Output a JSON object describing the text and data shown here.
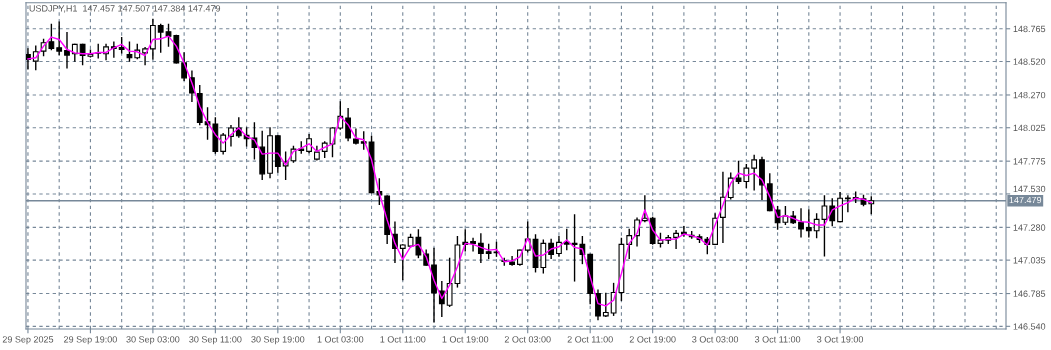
{
  "chart_data": {
    "type": "candlestick",
    "annotations": [
      "USDJPY,H1  147.457 147.507 147.384 147.479"
    ],
    "categories": [
      "29 Sep 2025",
      null,
      null,
      null,
      null,
      null,
      null,
      null,
      "29 Sep 19:00",
      null,
      null,
      null,
      null,
      null,
      null,
      null,
      "30 Sep 03:00",
      null,
      null,
      null,
      null,
      null,
      null,
      null,
      "30 Sep 11:00",
      null,
      null,
      null,
      null,
      null,
      null,
      null,
      "30 Sep 19:00",
      null,
      null,
      null,
      null,
      null,
      null,
      null,
      "1 Oct 03:00",
      null,
      null,
      null,
      null,
      null,
      null,
      null,
      "1 Oct 11:00",
      null,
      null,
      null,
      null,
      null,
      null,
      null,
      "1 Oct 19:00",
      null,
      null,
      null,
      null,
      null,
      null,
      null,
      "2 Oct 03:00",
      null,
      null,
      null,
      null,
      null,
      null,
      null,
      "2 Oct 11:00",
      null,
      null,
      null,
      null,
      null,
      null,
      null,
      "2 Oct 19:00",
      null,
      null,
      null,
      null,
      null,
      null,
      null,
      "3 Oct 03:00",
      null,
      null,
      null,
      null,
      null,
      null,
      null,
      "3 Oct 11:00",
      null,
      null,
      null,
      null,
      null,
      null,
      null,
      "3 Oct 19:00",
      null,
      null,
      null,
      null
    ],
    "color": "#000000",
    "ohlc": [
      [
        148.573,
        148.615,
        148.465,
        148.535
      ],
      [
        148.523,
        148.635,
        148.46,
        148.593
      ],
      [
        148.598,
        148.685,
        148.565,
        148.66
      ],
      [
        148.668,
        148.798,
        148.61,
        148.618
      ],
      [
        148.623,
        148.815,
        148.573,
        148.598
      ],
      [
        148.603,
        148.735,
        148.473,
        148.568
      ],
      [
        148.578,
        148.648,
        148.523,
        148.648
      ],
      [
        148.648,
        148.648,
        148.498,
        148.565
      ],
      [
        148.56,
        148.605,
        148.555,
        148.573
      ],
      [
        148.583,
        148.648,
        148.548,
        148.585
      ],
      [
        148.578,
        148.648,
        148.535,
        148.63
      ],
      [
        148.63,
        148.665,
        148.553,
        148.618
      ],
      [
        148.625,
        148.698,
        148.585,
        148.61
      ],
      [
        148.573,
        148.665,
        148.523,
        148.548
      ],
      [
        148.548,
        148.648,
        148.543,
        148.605
      ],
      [
        148.585,
        148.623,
        148.498,
        148.615
      ],
      [
        148.615,
        148.835,
        148.54,
        148.79
      ],
      [
        148.79,
        148.798,
        148.59,
        148.74
      ],
      [
        148.743,
        148.798,
        148.635,
        148.71
      ],
      [
        148.715,
        148.715,
        148.51,
        148.51
      ],
      [
        148.51,
        148.585,
        148.38,
        148.398
      ],
      [
        148.398,
        148.448,
        148.223,
        148.285
      ],
      [
        148.28,
        148.34,
        148.048,
        148.065
      ],
      [
        148.07,
        148.173,
        147.94,
        148.048
      ],
      [
        148.053,
        148.098,
        147.835,
        147.848
      ],
      [
        147.848,
        147.98,
        147.83,
        147.97
      ],
      [
        147.96,
        148.04,
        147.89,
        148.023
      ],
      [
        148.023,
        148.098,
        147.955,
        147.965
      ],
      [
        147.968,
        148.023,
        147.89,
        147.943
      ],
      [
        147.948,
        148.06,
        147.793,
        147.878
      ],
      [
        147.88,
        147.998,
        147.64,
        147.68
      ],
      [
        147.685,
        148.023,
        147.653,
        147.965
      ],
      [
        147.965,
        147.965,
        147.693,
        147.735
      ],
      [
        147.74,
        147.843,
        147.64,
        147.768
      ],
      [
        147.778,
        147.885,
        147.768,
        147.865
      ],
      [
        147.865,
        147.918,
        147.835,
        147.855
      ],
      [
        147.848,
        147.973,
        147.84,
        147.943
      ],
      [
        147.79,
        147.885,
        147.785,
        147.843
      ],
      [
        147.848,
        147.918,
        147.803,
        147.91
      ],
      [
        147.903,
        148.023,
        147.81,
        148.023
      ],
      [
        148.023,
        148.218,
        148.015,
        148.11
      ],
      [
        148.098,
        148.168,
        147.93,
        147.948
      ],
      [
        147.94,
        148.015,
        147.905,
        147.91
      ],
      [
        147.92,
        147.993,
        147.865,
        147.91
      ],
      [
        147.918,
        147.96,
        147.54,
        147.54
      ],
      [
        147.548,
        147.643,
        147.453,
        147.523
      ],
      [
        147.515,
        147.515,
        147.16,
        147.228
      ],
      [
        147.228,
        147.318,
        147.018,
        147.123
      ],
      [
        147.123,
        147.148,
        146.89,
        147.148
      ],
      [
        147.14,
        147.228,
        147.135,
        147.205
      ],
      [
        147.205,
        147.26,
        147.055,
        147.073
      ],
      [
        147.08,
        147.11,
        146.998,
        146.998
      ],
      [
        146.998,
        147.123,
        146.573,
        146.79
      ],
      [
        146.803,
        146.873,
        146.615,
        146.71
      ],
      [
        146.698,
        147.048,
        146.69,
        146.86
      ],
      [
        146.86,
        147.21,
        146.835,
        147.148
      ],
      [
        147.168,
        147.26,
        147.105,
        147.153
      ],
      [
        147.173,
        147.198,
        147.105,
        147.16
      ],
      [
        147.16,
        147.23,
        147.018,
        147.085
      ],
      [
        147.098,
        147.153,
        147.048,
        147.085
      ],
      [
        147.095,
        147.168,
        147.065,
        147.09
      ],
      [
        147.03,
        147.048,
        146.998,
        147.025
      ],
      [
        147.02,
        147.06,
        146.998,
        147.003
      ],
      [
        147.003,
        147.11,
        146.998,
        147.11
      ],
      [
        147.11,
        147.318,
        147.098,
        147.193
      ],
      [
        147.19,
        147.223,
        146.948,
        146.98
      ],
      [
        146.98,
        147.185,
        146.94,
        147.16
      ],
      [
        147.16,
        147.19,
        147.048,
        147.078
      ],
      [
        147.085,
        147.21,
        147.065,
        147.168
      ],
      [
        147.168,
        147.265,
        147.115,
        147.155
      ],
      [
        147.16,
        147.373,
        146.88,
        147.153
      ],
      [
        147.153,
        147.21,
        147.01,
        147.078
      ],
      [
        147.078,
        147.078,
        146.71,
        146.785
      ],
      [
        146.785,
        146.81,
        146.59,
        146.618
      ],
      [
        146.618,
        146.785,
        146.615,
        146.643
      ],
      [
        146.64,
        146.86,
        146.623,
        146.793
      ],
      [
        146.793,
        147.198,
        146.735,
        147.153
      ],
      [
        147.153,
        147.265,
        147.048,
        147.218
      ],
      [
        147.218,
        147.348,
        147.143,
        147.335
      ],
      [
        147.33,
        147.515,
        147.323,
        147.348
      ],
      [
        147.348,
        147.355,
        147.155,
        147.16
      ],
      [
        147.16,
        147.235,
        147.135,
        147.185
      ],
      [
        147.185,
        147.218,
        147.16,
        147.203
      ],
      [
        147.205,
        147.255,
        147.123,
        147.235
      ],
      [
        147.243,
        147.285,
        147.215,
        147.23
      ],
      [
        147.22,
        147.248,
        147.2,
        147.21
      ],
      [
        147.21,
        147.223,
        147.168,
        147.19
      ],
      [
        147.19,
        147.203,
        147.085,
        147.153
      ],
      [
        147.153,
        147.38,
        147.153,
        147.348
      ],
      [
        147.355,
        147.69,
        147.168,
        147.505
      ],
      [
        147.503,
        147.685,
        147.493,
        147.648
      ],
      [
        147.648,
        147.773,
        147.61,
        147.623
      ],
      [
        147.623,
        147.748,
        147.58,
        147.723
      ],
      [
        147.723,
        147.818,
        147.56,
        147.785
      ],
      [
        147.785,
        147.803,
        147.49,
        147.598
      ],
      [
        147.605,
        147.68,
        147.405,
        147.405
      ],
      [
        147.41,
        147.435,
        147.268,
        147.315
      ],
      [
        147.318,
        147.435,
        147.303,
        147.365
      ],
      [
        147.365,
        147.398,
        147.31,
        147.315
      ],
      [
        147.318,
        147.418,
        147.21,
        147.268
      ],
      [
        147.278,
        147.41,
        147.21,
        147.255
      ],
      [
        147.255,
        147.38,
        147.203,
        147.34
      ],
      [
        147.34,
        147.515,
        147.068,
        147.44
      ],
      [
        147.44,
        147.493,
        147.293,
        147.33
      ],
      [
        147.323,
        147.54,
        147.323,
        147.498
      ],
      [
        147.495,
        147.515,
        147.398,
        147.5
      ],
      [
        147.503,
        147.543,
        147.468,
        147.495
      ],
      [
        147.493,
        147.518,
        147.443,
        147.453
      ],
      [
        147.457,
        147.507,
        147.384,
        147.479
      ]
    ],
    "series": [
      {
        "type": "line",
        "color": "#ff00ff",
        "values": [
          148.54,
          148.548,
          148.635,
          148.703,
          148.685,
          148.61,
          148.585,
          148.578,
          148.578,
          148.588,
          148.588,
          148.623,
          148.648,
          148.598,
          148.593,
          148.565,
          148.685,
          148.69,
          148.71,
          148.635,
          148.51,
          148.36,
          148.185,
          148.065,
          147.973,
          147.91,
          147.973,
          148.023,
          147.96,
          147.935,
          147.828,
          147.835,
          147.835,
          147.748,
          147.848,
          147.873,
          147.905,
          147.848,
          147.878,
          147.905,
          148.11,
          148.048,
          147.948,
          147.935,
          147.785,
          147.535,
          147.335,
          147.16,
          147.04,
          147.135,
          147.153,
          147.06,
          146.885,
          146.748,
          146.848,
          146.985,
          147.16,
          147.153,
          147.13,
          147.11,
          147.115,
          147.023,
          147.03,
          147.06,
          147.198,
          147.065,
          147.073,
          147.118,
          147.135,
          147.185,
          147.13,
          147.118,
          146.91,
          146.71,
          146.693,
          146.735,
          146.935,
          147.16,
          147.235,
          147.41,
          147.26,
          147.185,
          147.19,
          147.193,
          147.23,
          147.218,
          147.198,
          147.148,
          147.298,
          147.448,
          147.61,
          147.685,
          147.668,
          147.685,
          147.635,
          147.51,
          147.355,
          147.368,
          147.348,
          147.323,
          147.318,
          147.298,
          147.298,
          147.41,
          147.44,
          147.465,
          147.498,
          147.49,
          147.465
        ]
      }
    ],
    "ylim": [
      146.52,
      148.96
    ],
    "yticks": [
      {
        "value": 146.54,
        "label": "146.540"
      },
      146.785,
      147.035,
      {
        "value": 147.28,
        "label": "147.280"
      },
      {
        "value": 147.53,
        "label": "147.530"
      },
      147.775,
      148.025,
      {
        "value": 148.27,
        "label": "148.270"
      },
      {
        "value": 148.52,
        "label": "148.520"
      },
      148.765
    ],
    "ref_lines": [
      {
        "axis": "y",
        "value": 147.479,
        "label": "147.479",
        "color": "#778899"
      }
    ],
    "grid": true
  }
}
